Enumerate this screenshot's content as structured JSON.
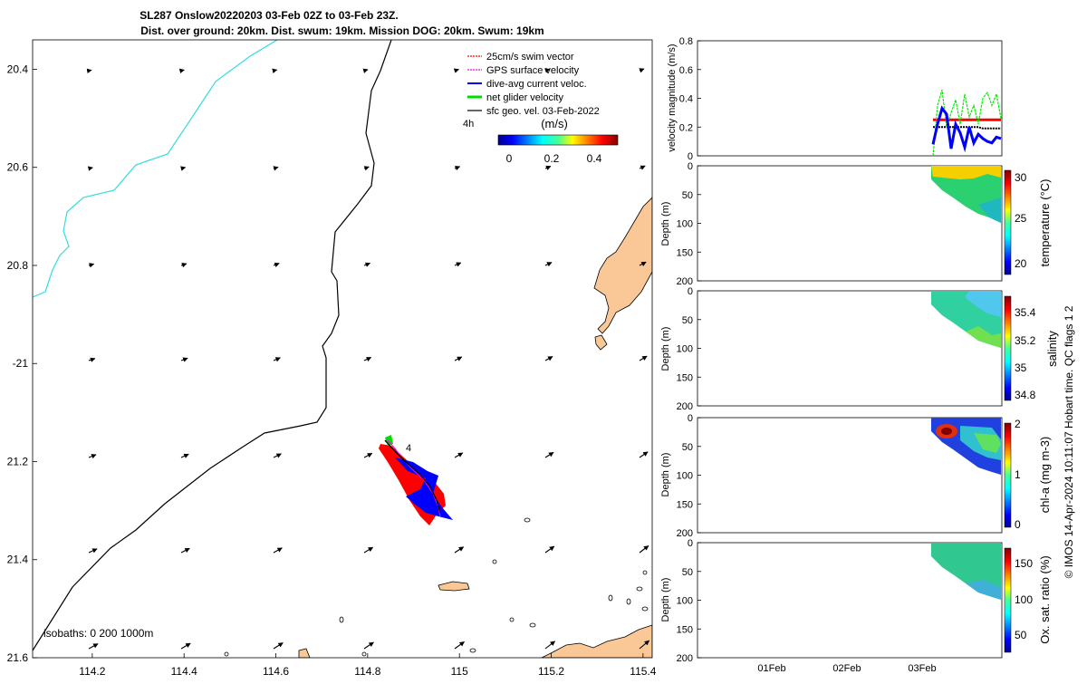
{
  "header": {
    "title_line1": "SL287 Onslow20220203 03-Feb 02Z to 03-Feb 23Z.",
    "title_line2": "Dist. over ground: 20km. Dist. swum: 19km. Mission DOG: 20km. Swum: 19km"
  },
  "map": {
    "x_ticks": [
      {
        "value": 114.2,
        "label": "114.2"
      },
      {
        "value": 114.4,
        "label": "114.4"
      },
      {
        "value": 114.6,
        "label": "114.6"
      },
      {
        "value": 114.8,
        "label": "114.8"
      },
      {
        "value": 115.0,
        "label": "115"
      },
      {
        "value": 115.2,
        "label": "115.2"
      },
      {
        "value": 115.4,
        "label": "115.4"
      }
    ],
    "y_ticks": [
      {
        "value": -20.4,
        "label": "20.4"
      },
      {
        "value": -20.6,
        "label": "20.6"
      },
      {
        "value": -20.8,
        "label": "20.8"
      },
      {
        "value": -21.0,
        "label": "-21"
      },
      {
        "value": -21.2,
        "label": "21.2"
      },
      {
        "value": -21.4,
        "label": "21.4"
      },
      {
        "value": -21.6,
        "label": "21.6"
      }
    ],
    "legend": [
      {
        "label": "25cm/s swim vector",
        "color": "#ff0000"
      },
      {
        "label": "GPS surface velocity",
        "color": "#ff00ff"
      },
      {
        "label": "dive-avg current veloc.",
        "color": "#0000ff"
      },
      {
        "label": "net glider velocity",
        "color": "#00dd00"
      },
      {
        "label": "sfc geo. vel. 03-Feb-2022",
        "color": "#000000"
      }
    ],
    "legend_note": "4h",
    "colorbar": {
      "unit": "(m/s)",
      "ticks": [
        "0",
        "0.2",
        "0.4"
      ]
    },
    "track_label": "4",
    "isobaths_label": "isobaths: 0   200  1000m",
    "land_color": "#f9c896"
  },
  "velocity_panel": {
    "ylabel": "velocity magnitude (m/s)",
    "yticks": [
      "0",
      "0.2",
      "0.4",
      "0.6",
      "0.8"
    ]
  },
  "sections": [
    {
      "id": "temperature",
      "cbar_label": "temperature (°C)",
      "cbar_ticks": [
        "20",
        "25",
        "30"
      ],
      "ylabel": "Depth (m)"
    },
    {
      "id": "salinity",
      "cbar_label": "salinity",
      "cbar_ticks": [
        "34.8",
        "35",
        "35.2",
        "35.4"
      ],
      "ylabel": "Depth (m)"
    },
    {
      "id": "chla",
      "cbar_label": "chl-a (mg m-3)",
      "cbar_ticks": [
        "0",
        "1",
        "2"
      ],
      "ylabel": "Depth (m)"
    },
    {
      "id": "oxygen",
      "cbar_label": "Ox. sat. ratio (%)",
      "cbar_ticks": [
        "50",
        "100",
        "150"
      ],
      "ylabel": "Depth (m)"
    }
  ],
  "depth_ticks": [
    "0",
    "50",
    "100",
    "150",
    "200"
  ],
  "time_ticks": [
    "01Feb",
    "02Feb",
    "03Feb"
  ],
  "credit": "© IMOS 14-Apr-2024 10:11:07 Hobart time. QC flags 1  2",
  "chart_data": [
    {
      "type": "scatter",
      "title": "SL287 Onslow20220203 03-Feb 02Z to 03-Feb 23Z.",
      "xlim": [
        114.07,
        115.42
      ],
      "ylim": [
        -21.6,
        -20.34
      ],
      "x_ticks": [
        114.2,
        114.4,
        114.6,
        114.8,
        115.0,
        115.2,
        115.4
      ],
      "y_ticks": [
        -20.4,
        -20.6,
        -20.8,
        -21.0,
        -21.2,
        -21.4,
        -21.6
      ],
      "track_start": {
        "lon": 114.84,
        "lat": -21.17
      },
      "track_end": {
        "lon": 114.96,
        "lat": -21.32
      },
      "legend_position": "top-right"
    },
    {
      "type": "line",
      "ylabel": "velocity magnitude (m/s)",
      "ylim": [
        0,
        0.8
      ],
      "x_ticks": [
        "01Feb",
        "02Feb",
        "03Feb"
      ],
      "series": [
        {
          "name": "net glider velocity",
          "color": "#00ee00",
          "values": [
            0.0,
            0.35,
            0.46,
            0.2,
            0.3,
            0.39,
            0.22,
            0.43,
            0.27,
            0.35,
            0.22,
            0.4,
            0.44,
            0.35,
            0.43,
            0.26
          ]
        },
        {
          "name": "dive-avg current veloc.",
          "color": "#0000ff",
          "values": [
            0.08,
            0.22,
            0.33,
            0.29,
            0.05,
            0.22,
            0.16,
            0.06,
            0.2,
            0.09,
            0.15,
            0.12,
            0.1,
            0.09,
            0.13,
            0.12
          ]
        },
        {
          "name": "25cm/s swim vector",
          "color": "#ff0000",
          "values": [
            0.25,
            0.25,
            0.25,
            0.25,
            0.25,
            0.25,
            0.25,
            0.25,
            0.25,
            0.25,
            0.25,
            0.25,
            0.25,
            0.25,
            0.25,
            0.25
          ]
        },
        {
          "name": "sfc geo. vel. 03-Feb-2022",
          "color": "#000000",
          "values": [
            0.2,
            0.2,
            0.2,
            0.2,
            0.2,
            0.2,
            0.2,
            0.2,
            0.2,
            0.2,
            0.2,
            0.19,
            0.19,
            0.19,
            0.19,
            0.19
          ]
        }
      ]
    },
    {
      "type": "heatmap",
      "variable": "temperature (°C)",
      "ylabel": "Depth (m)",
      "ylim": [
        0,
        200
      ],
      "clim": [
        18,
        31
      ]
    },
    {
      "type": "heatmap",
      "variable": "salinity",
      "ylabel": "Depth (m)",
      "ylim": [
        0,
        200
      ],
      "clim": [
        34.7,
        35.5
      ]
    },
    {
      "type": "heatmap",
      "variable": "chl-a (mg m-3)",
      "ylabel": "Depth (m)",
      "ylim": [
        0,
        200
      ],
      "clim": [
        0,
        2
      ]
    },
    {
      "type": "heatmap",
      "variable": "Ox. sat. ratio (%)",
      "ylabel": "Depth (m)",
      "ylim": [
        0,
        200
      ],
      "clim": [
        25,
        175
      ]
    }
  ]
}
